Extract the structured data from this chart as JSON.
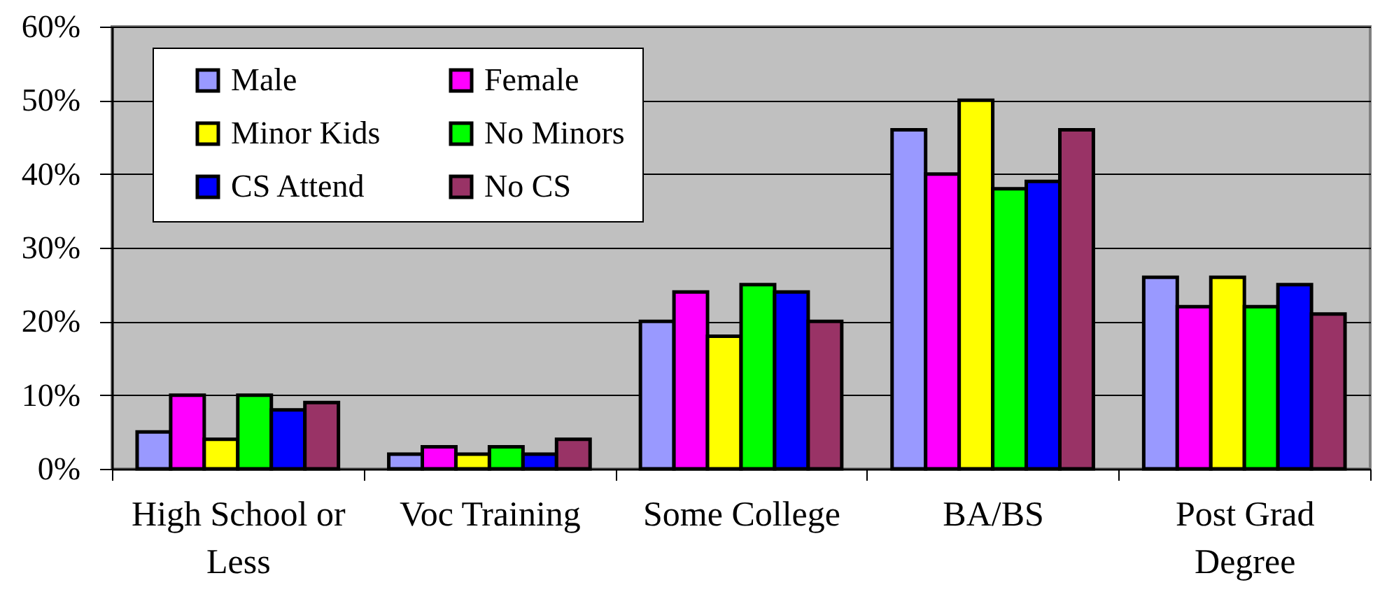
{
  "chart_data": {
    "type": "bar",
    "categories": [
      "High School or Less",
      "Voc Training",
      "Some College",
      "BA/BS",
      "Post Grad Degree"
    ],
    "series": [
      {
        "name": "Male",
        "color": "#9999ff",
        "values": [
          5,
          2,
          20,
          46,
          26
        ]
      },
      {
        "name": "Female",
        "color": "#ff00ff",
        "values": [
          10,
          3,
          24,
          40,
          22
        ]
      },
      {
        "name": "Minor Kids",
        "color": "#ffff00",
        "values": [
          4,
          2,
          18,
          50,
          26
        ]
      },
      {
        "name": "No Minors",
        "color": "#00ff00",
        "values": [
          10,
          3,
          25,
          38,
          22
        ]
      },
      {
        "name": "CS Attend",
        "color": "#0000ff",
        "values": [
          8,
          2,
          24,
          39,
          25
        ]
      },
      {
        "name": "No CS",
        "color": "#993366",
        "values": [
          9,
          4,
          20,
          46,
          21
        ]
      }
    ],
    "ylim": [
      0,
      60
    ],
    "yticks": [
      {
        "value": 0,
        "label": "0%"
      },
      {
        "value": 10,
        "label": "10%"
      },
      {
        "value": 20,
        "label": "20%"
      },
      {
        "value": 30,
        "label": "30%"
      },
      {
        "value": 40,
        "label": "40%"
      },
      {
        "value": 50,
        "label": "50%"
      },
      {
        "value": 60,
        "label": "60%"
      }
    ],
    "grid": "y",
    "legend": "top left"
  }
}
